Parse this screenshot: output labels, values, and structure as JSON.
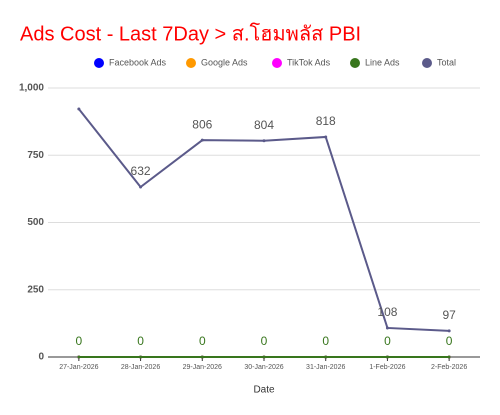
{
  "chart_data": {
    "type": "line",
    "title": "Ads Cost - Last 7Day > ส.โฮมพลัส PBI",
    "x_label": "Date",
    "categories": [
      "27-Jan-2026",
      "28-Jan-2026",
      "29-Jan-2026",
      "30-Jan-2026",
      "31-Jan-2026",
      "1-Feb-2026",
      "2-Feb-2026"
    ],
    "series": [
      {
        "name": "Facebook Ads",
        "color": "#0000ff",
        "values": [
          0,
          0,
          0,
          0,
          0,
          0,
          0
        ]
      },
      {
        "name": "Google Ads",
        "color": "#ff9900",
        "values": [
          0,
          0,
          0,
          0,
          0,
          0,
          0
        ]
      },
      {
        "name": "TikTok Ads",
        "color": "#ff00ff",
        "values": [
          0,
          0,
          0,
          0,
          0,
          0,
          0
        ]
      },
      {
        "name": "Line Ads",
        "color": "#38761d",
        "values": [
          0,
          0,
          0,
          0,
          0,
          0,
          0
        ],
        "value_labels": [
          "0",
          "0",
          "0",
          "0",
          "0",
          "0",
          "0"
        ]
      },
      {
        "name": "Total",
        "color": "#5b5a8a",
        "values": [
          922,
          632,
          806,
          804,
          818,
          108,
          97
        ],
        "value_labels": [
          null,
          "632",
          "806",
          "804",
          "818",
          "108",
          "97"
        ]
      }
    ],
    "ylim": [
      0,
      1000
    ],
    "yticks": [
      {
        "value": 0,
        "label": "0"
      },
      {
        "value": 250,
        "label": "250"
      },
      {
        "value": 500,
        "label": "500"
      },
      {
        "value": 750,
        "label": "750"
      },
      {
        "value": 1000,
        "label": "1,000"
      }
    ],
    "grid": true,
    "legend": "top"
  }
}
